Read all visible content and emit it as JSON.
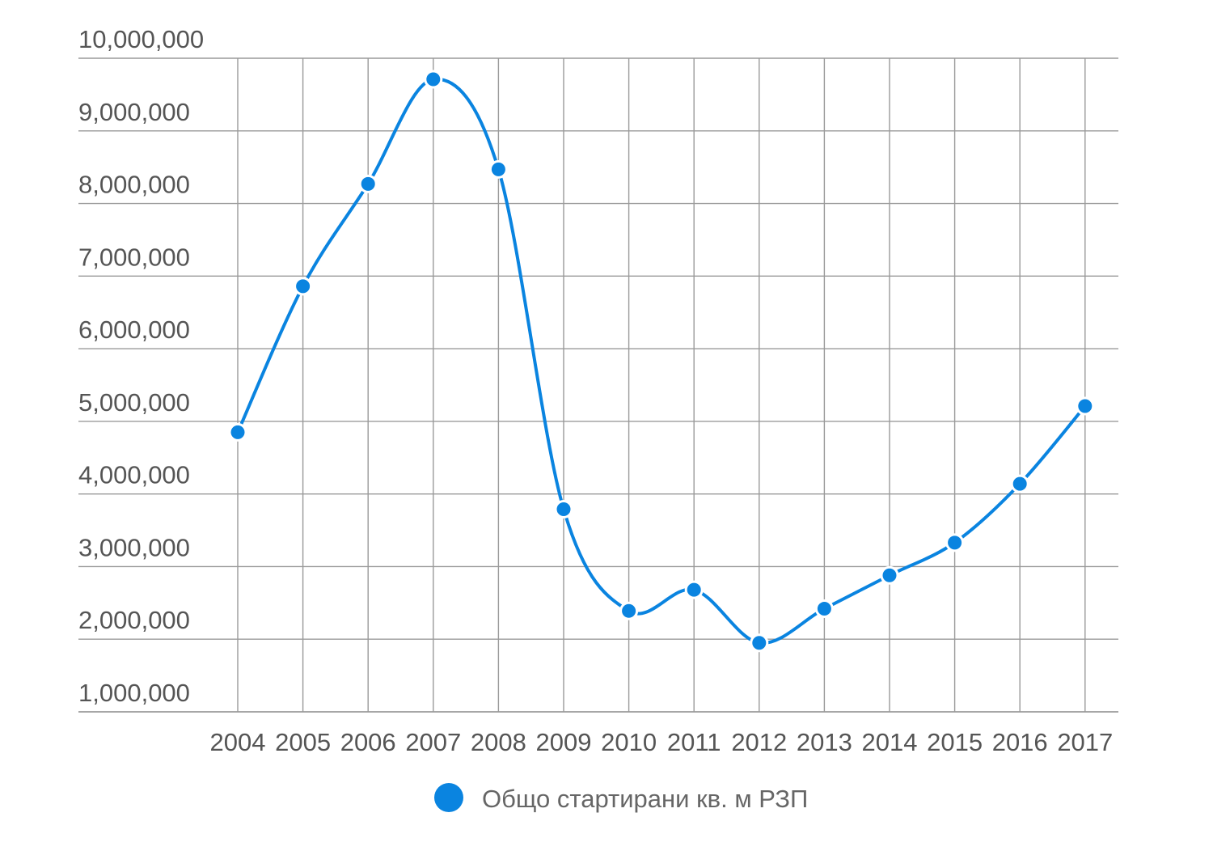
{
  "chart_data": {
    "type": "line",
    "title": "",
    "xlabel": "",
    "ylabel": "",
    "categories": [
      "2004",
      "2005",
      "2006",
      "2007",
      "2008",
      "2009",
      "2010",
      "2011",
      "2012",
      "2013",
      "2014",
      "2015",
      "2016",
      "2017"
    ],
    "series": [
      {
        "name": "Общо стартирани кв. м РЗП",
        "values": [
          4850000,
          6860000,
          8270000,
          9710000,
          8470000,
          3790000,
          2390000,
          2680000,
          1950000,
          2420000,
          2880000,
          3330000,
          4140000,
          5210000
        ]
      }
    ],
    "ylim": [
      1000000,
      10000000
    ],
    "yticks": [
      1000000,
      2000000,
      3000000,
      4000000,
      5000000,
      6000000,
      7000000,
      8000000,
      9000000,
      10000000
    ],
    "ytick_labels": [
      "1,000,000",
      "2,000,000",
      "3,000,000",
      "4,000,000",
      "5,000,000",
      "6,000,000",
      "7,000,000",
      "8,000,000",
      "9,000,000",
      "10,000,000"
    ],
    "grid": true,
    "smooth": true,
    "markers": true,
    "legend_position": "bottom-center",
    "colors": {
      "series": "#0a84e0",
      "grid": "#9a9a9a",
      "text": "#555555"
    }
  }
}
